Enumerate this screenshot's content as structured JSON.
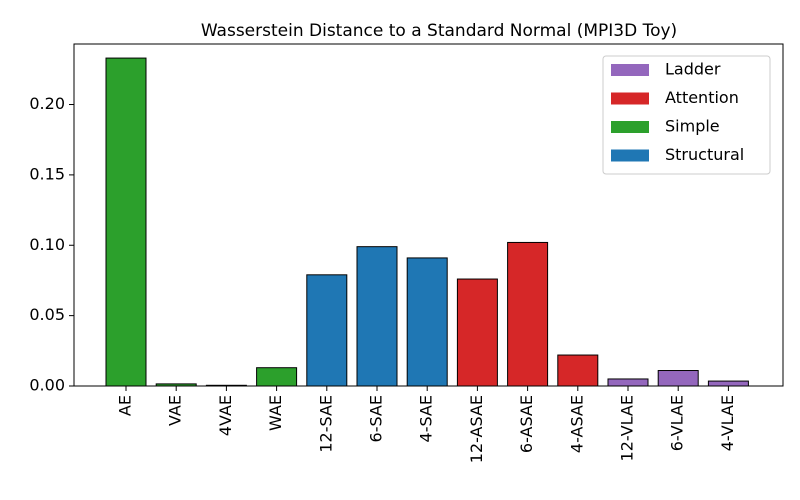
{
  "chart_data": {
    "type": "bar",
    "title": "Wasserstein Distance to a Standard Normal (MPI3D Toy)",
    "xlabel": "",
    "ylabel": "",
    "ylim": [
      0,
      0.243
    ],
    "yticks": [
      0.0,
      0.05,
      0.1,
      0.15,
      0.2
    ],
    "ytick_labels": [
      "0.00",
      "0.05",
      "0.10",
      "0.15",
      "0.20"
    ],
    "grid": false,
    "legend_placement": "top-right",
    "categories": [
      "AE",
      "VAE",
      "4VAE",
      "WAE",
      "12-SAE",
      "6-SAE",
      "4-SAE",
      "12-ASAE",
      "6-ASAE",
      "4-ASAE",
      "12-VLAE",
      "6-VLAE",
      "4-VLAE"
    ],
    "values": [
      0.233,
      0.0015,
      0.0005,
      0.013,
      0.079,
      0.099,
      0.091,
      0.076,
      0.102,
      0.022,
      0.005,
      0.011,
      0.0035
    ],
    "groups": [
      "Simple",
      "Simple",
      "Simple",
      "Simple",
      "Structural",
      "Structural",
      "Structural",
      "Attention",
      "Attention",
      "Attention",
      "Ladder",
      "Ladder",
      "Ladder"
    ],
    "legend": [
      {
        "name": "Ladder",
        "color": "#9467bd"
      },
      {
        "name": "Attention",
        "color": "#d62728"
      },
      {
        "name": "Simple",
        "color": "#2ca02c"
      },
      {
        "name": "Structural",
        "color": "#1f77b4"
      }
    ]
  }
}
